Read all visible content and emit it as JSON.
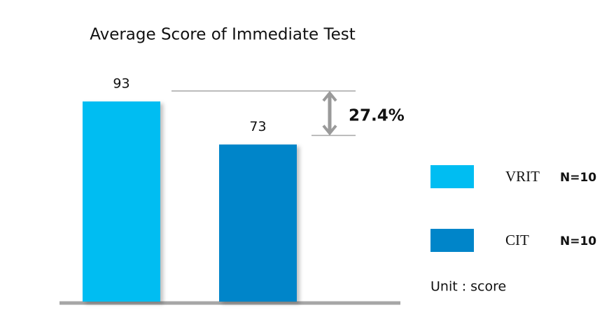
{
  "chart_data": {
    "type": "bar",
    "title": "Average Score of Immediate Test",
    "series": [
      {
        "name": "VRIT",
        "note": "N=10",
        "color": "#00bdf2",
        "values": [
          93
        ]
      },
      {
        "name": "CIT",
        "note": "N=10",
        "color": "#0085c9",
        "values": [
          73
        ]
      }
    ],
    "difference_label": "27.4%",
    "unit_label": "Unit : score"
  }
}
